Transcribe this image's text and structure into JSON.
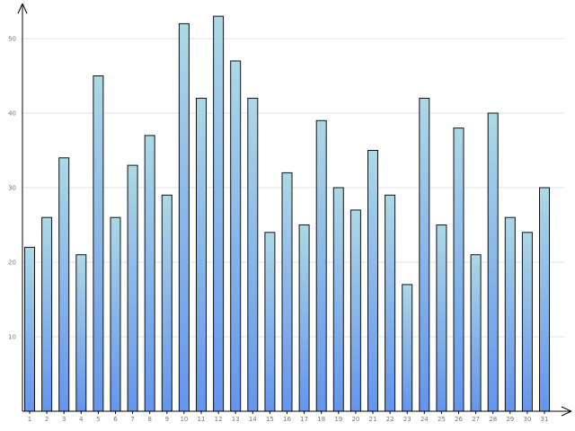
{
  "chart_data": {
    "type": "bar",
    "title": "",
    "xlabel": "",
    "ylabel": "",
    "categories": [
      "1",
      "2",
      "3",
      "4",
      "5",
      "6",
      "7",
      "8",
      "9",
      "10",
      "11",
      "12",
      "13",
      "14",
      "15",
      "16",
      "17",
      "18",
      "19",
      "20",
      "21",
      "22",
      "23",
      "24",
      "25",
      "26",
      "27",
      "28",
      "29",
      "30",
      "31"
    ],
    "values": [
      22,
      26,
      34,
      21,
      45,
      26,
      33,
      37,
      29,
      52,
      42,
      53,
      47,
      42,
      24,
      32,
      25,
      39,
      30,
      27,
      35,
      29,
      17,
      42,
      25,
      38,
      21,
      40,
      26,
      24,
      30
    ],
    "ylim": [
      0,
      55
    ],
    "yticks": [
      10,
      20,
      30,
      40,
      50
    ],
    "grid": true,
    "legend": "none",
    "bar_gradient": {
      "top": "#add8e6",
      "bottom": "#6495ed"
    },
    "bar_stroke": "#111111",
    "axis_color": "#000000",
    "grid_color": "#e3e3e3",
    "tick_label_color": "#777777"
  }
}
